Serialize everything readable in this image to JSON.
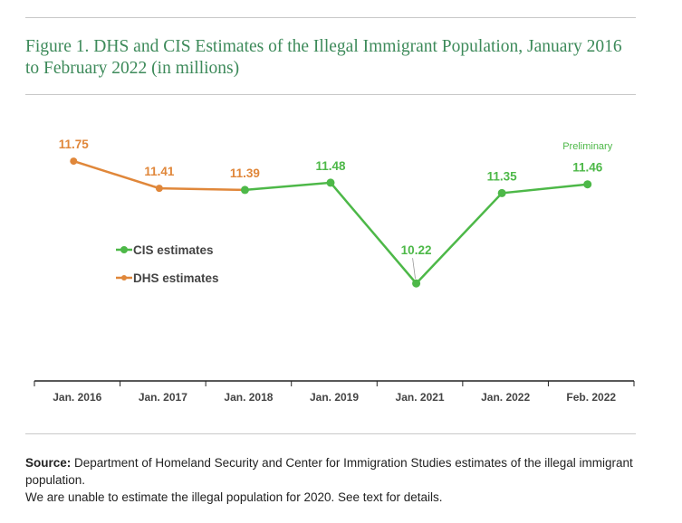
{
  "title": "Figure 1. DHS and CIS Estimates of the Illegal Immigrant Population, January 2016 to February 2022 (in millions)",
  "chart_data": {
    "type": "line",
    "title": "Figure 1. DHS and CIS Estimates of the Illegal Immigrant Population, January 2016 to February 2022 (in millions)",
    "categories": [
      "Jan. 2016",
      "Jan. 2017",
      "Jan. 2018",
      "Jan. 2019",
      "Jan. 2021",
      "Jan. 2022",
      "Feb. 2022"
    ],
    "series": [
      {
        "name": "DHS estimates",
        "color": "#e0873a",
        "values": [
          11.75,
          11.41,
          11.39,
          null,
          null,
          null,
          null
        ]
      },
      {
        "name": "CIS estimates",
        "color": "#4db848",
        "values": [
          null,
          null,
          11.39,
          11.48,
          10.22,
          11.35,
          11.46
        ]
      }
    ],
    "labels": [
      {
        "text": "11.75",
        "color": "#e0873a"
      },
      {
        "text": "11.41",
        "color": "#e0873a"
      },
      {
        "text": "11.39",
        "color": "#e0873a"
      },
      {
        "text": "11.48",
        "color": "#4db848"
      },
      {
        "text": "10.22",
        "color": "#4db848"
      },
      {
        "text": "11.35",
        "color": "#4db848"
      },
      {
        "text": "11.46",
        "color": "#4db848"
      }
    ],
    "annotation": "Preliminary",
    "legend": [
      {
        "name": "CIS estimates",
        "color": "#4db848"
      },
      {
        "name": "DHS estimates",
        "color": "#e0873a"
      }
    ],
    "legend_placement": "center-left",
    "ylim": [
      9,
      12
    ],
    "xlabel": "",
    "ylabel": "",
    "grid": false
  },
  "source": {
    "label": "Source:",
    "text": "Department of Homeland Security and Center for Immigration Studies estimates of the illegal immigrant population.",
    "note": "We are unable to estimate the illegal population for 2020. See text for details."
  }
}
